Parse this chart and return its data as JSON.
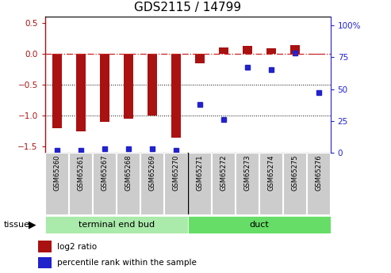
{
  "title": "GDS2115 / 14799",
  "samples": [
    "GSM65260",
    "GSM65261",
    "GSM65267",
    "GSM65268",
    "GSM65269",
    "GSM65270",
    "GSM65271",
    "GSM65272",
    "GSM65273",
    "GSM65274",
    "GSM65275",
    "GSM65276"
  ],
  "log2_ratio": [
    -1.2,
    -1.25,
    -1.1,
    -1.05,
    -1.0,
    -1.35,
    -0.15,
    0.1,
    0.12,
    0.08,
    0.14,
    -0.02
  ],
  "percentile_rank": [
    2,
    2,
    3,
    3,
    3,
    2,
    38,
    26,
    67,
    65,
    78,
    47
  ],
  "group1_label": "terminal end bud",
  "group2_label": "duct",
  "group1_color": "#aaeaaa",
  "group2_color": "#66dd66",
  "bar_color": "#aa1111",
  "dot_color": "#2222cc",
  "ylim_left": [
    -1.6,
    0.6
  ],
  "ylim_right": [
    0,
    107
  ],
  "yticks_left": [
    -1.5,
    -1.0,
    -0.5,
    0,
    0.5
  ],
  "yticks_right": [
    0,
    25,
    50,
    75,
    100
  ],
  "hline_color": "#cc2222",
  "legend_red_label": "log2 ratio",
  "legend_blue_label": "percentile rank within the sample",
  "title_fontsize": 11,
  "tick_fontsize": 7.5,
  "bar_width": 0.4
}
